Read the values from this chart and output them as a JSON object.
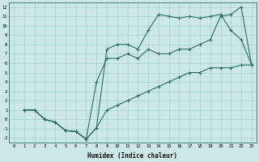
{
  "background_color": "#cce8e4",
  "line_color": "#2d6e63",
  "grid_color": "#a0ccc8",
  "xlabel": "Humidex (Indice chaleur)",
  "xlim": [
    -0.5,
    23.5
  ],
  "ylim": [
    -2.5,
    12.5
  ],
  "xticks": [
    0,
    1,
    2,
    3,
    4,
    5,
    6,
    7,
    8,
    9,
    10,
    11,
    12,
    13,
    14,
    15,
    16,
    17,
    18,
    19,
    20,
    21,
    22,
    23
  ],
  "yticks": [
    -2,
    -1,
    0,
    1,
    2,
    3,
    4,
    5,
    6,
    7,
    8,
    9,
    10,
    11,
    12
  ],
  "line1_x": [
    1,
    2,
    3,
    4,
    5,
    6,
    7,
    8,
    9,
    10,
    11,
    12,
    13,
    14,
    15,
    16,
    17,
    18,
    19,
    20,
    21,
    22,
    23
  ],
  "line1_y": [
    1,
    1,
    0,
    -0.3,
    -1.2,
    -1.3,
    -2.1,
    -0.9,
    7.5,
    8,
    8,
    7.5,
    9.5,
    11.2,
    11,
    10.8,
    11,
    10.8,
    11,
    11.2,
    9.5,
    8.5,
    5.8
  ],
  "line2_x": [
    1,
    2,
    3,
    4,
    5,
    6,
    7,
    8,
    9,
    10,
    11,
    12,
    13,
    14,
    15,
    16,
    17,
    18,
    19,
    20,
    21,
    22,
    23
  ],
  "line2_y": [
    1,
    1,
    0,
    -0.3,
    -1.2,
    -1.3,
    -2.1,
    4.0,
    6.5,
    6.5,
    7.0,
    6.5,
    7.5,
    7.0,
    7.0,
    7.5,
    7.5,
    8.0,
    8.5,
    11.0,
    11.2,
    12.0,
    5.8
  ],
  "line3_x": [
    1,
    2,
    3,
    4,
    5,
    6,
    7,
    8,
    9,
    10,
    11,
    12,
    13,
    14,
    15,
    16,
    17,
    18,
    19,
    20,
    21,
    22,
    23
  ],
  "line3_y": [
    1,
    1,
    0,
    -0.3,
    -1.2,
    -1.3,
    -2.1,
    -0.9,
    1.0,
    1.5,
    2.0,
    2.5,
    3.0,
    3.5,
    4.0,
    4.5,
    5.0,
    5.0,
    5.5,
    5.5,
    5.5,
    5.8,
    5.8
  ]
}
